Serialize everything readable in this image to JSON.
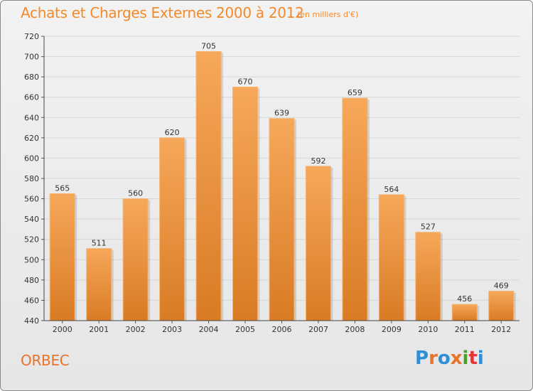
{
  "header": {
    "title": "Achats et Charges Externes 2000 à 2012",
    "subtitle": "(en milliers d'€)"
  },
  "footer": {
    "commune": "ORBEC",
    "logo_letters": [
      "P",
      "r",
      "o",
      "x",
      "i",
      "t",
      "i"
    ],
    "logo_colors": [
      "#2d8fd6",
      "#e8742a",
      "#2d8fd6",
      "#e8742a",
      "#4a9e2a",
      "#e5363a",
      "#2d8fd6"
    ]
  },
  "colors": {
    "bar_top": "#f6a85a",
    "bar_bottom": "#d97b24",
    "title": "#f28a2b",
    "grid": "#d6d6d6"
  },
  "chart_data": {
    "type": "bar",
    "categories": [
      "2000",
      "2001",
      "2002",
      "2003",
      "2004",
      "2005",
      "2006",
      "2007",
      "2008",
      "2009",
      "2010",
      "2011",
      "2012"
    ],
    "values": [
      565,
      511,
      560,
      620,
      705,
      670,
      639,
      592,
      659,
      564,
      527,
      456,
      469
    ],
    "value_labels": [
      "565",
      "511",
      "560",
      "620",
      "705",
      "670",
      "639",
      "592",
      "659",
      "564",
      "527",
      "456",
      "469"
    ],
    "yticks": [
      "440",
      "460",
      "480",
      "500",
      "520",
      "540",
      "560",
      "580",
      "600",
      "620",
      "640",
      "660",
      "680",
      "700",
      "720"
    ],
    "ylim": [
      440,
      720
    ],
    "grid": true
  }
}
